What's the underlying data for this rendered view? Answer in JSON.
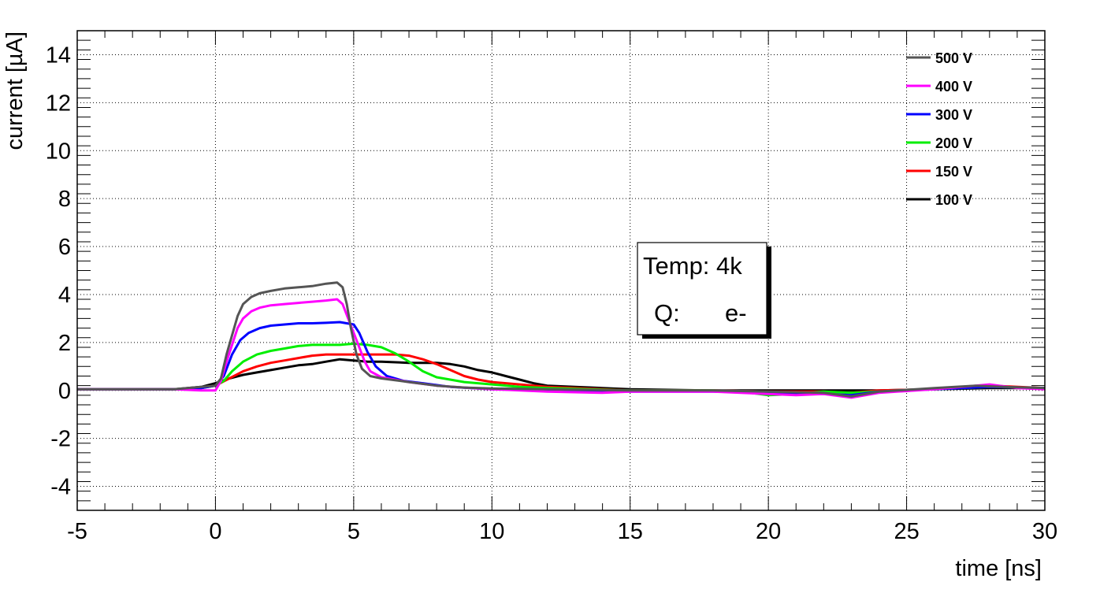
{
  "chart_data": {
    "type": "line",
    "title": "",
    "xlabel": "time [ns]",
    "ylabel": "current [µA]",
    "xlim": [
      -5,
      30
    ],
    "ylim": [
      -5,
      15
    ],
    "grid": true,
    "legend_position": "top-right",
    "x_ticks": [
      -5,
      0,
      5,
      10,
      15,
      20,
      25,
      30
    ],
    "x_tick_labels": [
      "-5",
      "0",
      "5",
      "10",
      "15",
      "20",
      "25",
      "30"
    ],
    "y_ticks": [
      -4,
      -2,
      0,
      2,
      4,
      6,
      8,
      10,
      12,
      14
    ],
    "y_tick_labels": [
      "-4",
      "-2",
      "0",
      "2",
      "4",
      "6",
      "8",
      "10",
      "12",
      "14"
    ],
    "annotation": {
      "line1": "Temp: 4k",
      "line2_label": "Q:",
      "line2_value": "e-"
    },
    "series": [
      {
        "name": "500 V",
        "color": "#555555",
        "points": [
          [
            -5,
            0.05
          ],
          [
            -3,
            0.05
          ],
          [
            -1.5,
            0.05
          ],
          [
            -0.5,
            0.15
          ],
          [
            0,
            0.2
          ],
          [
            0.2,
            0.5
          ],
          [
            0.4,
            1.5
          ],
          [
            0.6,
            2.3
          ],
          [
            0.8,
            3.1
          ],
          [
            1,
            3.6
          ],
          [
            1.3,
            3.9
          ],
          [
            1.6,
            4.05
          ],
          [
            2,
            4.15
          ],
          [
            2.5,
            4.25
          ],
          [
            3,
            4.3
          ],
          [
            3.5,
            4.35
          ],
          [
            4,
            4.45
          ],
          [
            4.4,
            4.5
          ],
          [
            4.6,
            4.3
          ],
          [
            4.75,
            3.6
          ],
          [
            4.9,
            2.6
          ],
          [
            5.1,
            1.5
          ],
          [
            5.3,
            0.9
          ],
          [
            5.6,
            0.6
          ],
          [
            6,
            0.5
          ],
          [
            7,
            0.35
          ],
          [
            8,
            0.2
          ],
          [
            9,
            0.12
          ],
          [
            10,
            0.08
          ],
          [
            12,
            0.05
          ],
          [
            15,
            0.0
          ],
          [
            18,
            0.0
          ],
          [
            20,
            -0.05
          ],
          [
            22,
            -0.1
          ],
          [
            23,
            -0.25
          ],
          [
            24,
            -0.05
          ],
          [
            26,
            0.1
          ],
          [
            27.5,
            0.2
          ],
          [
            28.5,
            0.15
          ],
          [
            30,
            0.1
          ]
        ]
      },
      {
        "name": "400 V",
        "color": "#ff00ff",
        "points": [
          [
            -5,
            0.05
          ],
          [
            -3,
            0.05
          ],
          [
            -1.5,
            0.05
          ],
          [
            -0.5,
            0.0
          ],
          [
            0,
            0.0
          ],
          [
            0.2,
            0.4
          ],
          [
            0.4,
            1.2
          ],
          [
            0.6,
            1.9
          ],
          [
            0.8,
            2.6
          ],
          [
            1,
            3.0
          ],
          [
            1.3,
            3.3
          ],
          [
            1.6,
            3.45
          ],
          [
            2,
            3.55
          ],
          [
            2.5,
            3.6
          ],
          [
            3,
            3.65
          ],
          [
            3.5,
            3.7
          ],
          [
            4,
            3.75
          ],
          [
            4.4,
            3.8
          ],
          [
            4.6,
            3.6
          ],
          [
            4.8,
            3.0
          ],
          [
            5,
            2.4
          ],
          [
            5.2,
            1.8
          ],
          [
            5.4,
            1.2
          ],
          [
            5.6,
            0.8
          ],
          [
            6,
            0.55
          ],
          [
            7,
            0.35
          ],
          [
            8,
            0.2
          ],
          [
            9,
            0.12
          ],
          [
            10,
            0.05
          ],
          [
            12,
            -0.05
          ],
          [
            14,
            -0.1
          ],
          [
            15,
            -0.05
          ],
          [
            18,
            -0.05
          ],
          [
            20,
            -0.15
          ],
          [
            21,
            -0.2
          ],
          [
            22,
            -0.15
          ],
          [
            23,
            -0.3
          ],
          [
            24,
            -0.1
          ],
          [
            26,
            0.05
          ],
          [
            27.5,
            0.2
          ],
          [
            28,
            0.25
          ],
          [
            29,
            0.1
          ],
          [
            30,
            0.05
          ]
        ]
      },
      {
        "name": "300 V",
        "color": "#0000ff",
        "points": [
          [
            -5,
            0.05
          ],
          [
            -3,
            0.05
          ],
          [
            -1.5,
            0.05
          ],
          [
            -0.5,
            0.1
          ],
          [
            0,
            0.2
          ],
          [
            0.3,
            0.6
          ],
          [
            0.6,
            1.5
          ],
          [
            0.9,
            2.1
          ],
          [
            1.2,
            2.4
          ],
          [
            1.6,
            2.6
          ],
          [
            2,
            2.7
          ],
          [
            2.5,
            2.75
          ],
          [
            3,
            2.8
          ],
          [
            3.5,
            2.8
          ],
          [
            4,
            2.82
          ],
          [
            4.5,
            2.85
          ],
          [
            5,
            2.75
          ],
          [
            5.2,
            2.4
          ],
          [
            5.5,
            1.6
          ],
          [
            5.8,
            1.0
          ],
          [
            6.2,
            0.6
          ],
          [
            6.8,
            0.4
          ],
          [
            7.5,
            0.3
          ],
          [
            8.5,
            0.15
          ],
          [
            10,
            0.05
          ],
          [
            12,
            0.0
          ],
          [
            15,
            -0.05
          ],
          [
            18,
            -0.05
          ],
          [
            20,
            -0.1
          ],
          [
            22,
            -0.15
          ],
          [
            23,
            -0.2
          ],
          [
            24,
            -0.05
          ],
          [
            26,
            0.05
          ],
          [
            28,
            0.15
          ],
          [
            30,
            0.1
          ]
        ]
      },
      {
        "name": "200 V",
        "color": "#00ee00",
        "points": [
          [
            -5,
            0.05
          ],
          [
            -3,
            0.05
          ],
          [
            -1.5,
            0.05
          ],
          [
            -0.5,
            0.1
          ],
          [
            0,
            0.2
          ],
          [
            0.3,
            0.4
          ],
          [
            0.6,
            0.8
          ],
          [
            1,
            1.2
          ],
          [
            1.5,
            1.5
          ],
          [
            2,
            1.65
          ],
          [
            2.5,
            1.75
          ],
          [
            3,
            1.85
          ],
          [
            3.5,
            1.9
          ],
          [
            4,
            1.9
          ],
          [
            4.5,
            1.9
          ],
          [
            5,
            1.95
          ],
          [
            5.5,
            1.9
          ],
          [
            6,
            1.8
          ],
          [
            6.5,
            1.55
          ],
          [
            7,
            1.2
          ],
          [
            7.5,
            0.8
          ],
          [
            8,
            0.55
          ],
          [
            9,
            0.35
          ],
          [
            10,
            0.25
          ],
          [
            11,
            0.15
          ],
          [
            12,
            0.1
          ],
          [
            15,
            0.0
          ],
          [
            18,
            0.0
          ],
          [
            19,
            -0.05
          ],
          [
            20,
            -0.2
          ],
          [
            21,
            -0.15
          ],
          [
            22,
            -0.05
          ],
          [
            23,
            -0.1
          ],
          [
            24,
            -0.05
          ],
          [
            26,
            0.05
          ],
          [
            28,
            0.15
          ],
          [
            30,
            0.1
          ]
        ]
      },
      {
        "name": "150 V",
        "color": "#ff0000",
        "points": [
          [
            -5,
            0.05
          ],
          [
            -3,
            0.05
          ],
          [
            -1.5,
            0.05
          ],
          [
            -0.5,
            0.1
          ],
          [
            0,
            0.2
          ],
          [
            0.5,
            0.5
          ],
          [
            1,
            0.8
          ],
          [
            1.5,
            1.0
          ],
          [
            2,
            1.15
          ],
          [
            2.5,
            1.25
          ],
          [
            3,
            1.35
          ],
          [
            3.5,
            1.45
          ],
          [
            4,
            1.5
          ],
          [
            4.5,
            1.5
          ],
          [
            5,
            1.5
          ],
          [
            5.5,
            1.5
          ],
          [
            6,
            1.5
          ],
          [
            6.5,
            1.5
          ],
          [
            7,
            1.45
          ],
          [
            7.5,
            1.3
          ],
          [
            8,
            1.1
          ],
          [
            8.5,
            0.85
          ],
          [
            9,
            0.6
          ],
          [
            9.5,
            0.45
          ],
          [
            10,
            0.35
          ],
          [
            11,
            0.25
          ],
          [
            12,
            0.15
          ],
          [
            13,
            0.1
          ],
          [
            15,
            0.0
          ],
          [
            18,
            0.0
          ],
          [
            20,
            -0.05
          ],
          [
            22,
            -0.05
          ],
          [
            23,
            -0.1
          ],
          [
            24,
            0.0
          ],
          [
            26,
            0.05
          ],
          [
            28,
            0.2
          ],
          [
            30,
            0.1
          ]
        ]
      },
      {
        "name": "100 V",
        "color": "#000000",
        "points": [
          [
            -5,
            0.05
          ],
          [
            -3,
            0.05
          ],
          [
            -1.5,
            0.05
          ],
          [
            -0.5,
            0.15
          ],
          [
            0,
            0.3
          ],
          [
            0.5,
            0.5
          ],
          [
            1,
            0.65
          ],
          [
            1.5,
            0.75
          ],
          [
            2,
            0.85
          ],
          [
            2.5,
            0.95
          ],
          [
            3,
            1.05
          ],
          [
            3.5,
            1.1
          ],
          [
            4,
            1.2
          ],
          [
            4.5,
            1.3
          ],
          [
            5,
            1.25
          ],
          [
            5.5,
            1.2
          ],
          [
            6,
            1.2
          ],
          [
            7,
            1.15
          ],
          [
            8,
            1.15
          ],
          [
            8.5,
            1.1
          ],
          [
            9,
            1.0
          ],
          [
            9.5,
            0.85
          ],
          [
            10,
            0.75
          ],
          [
            10.5,
            0.6
          ],
          [
            11,
            0.45
          ],
          [
            11.5,
            0.3
          ],
          [
            12,
            0.2
          ],
          [
            13,
            0.15
          ],
          [
            14,
            0.1
          ],
          [
            15,
            0.05
          ],
          [
            18,
            0.0
          ],
          [
            20,
            0.0
          ],
          [
            22,
            0.0
          ],
          [
            24,
            0.0
          ],
          [
            26,
            0.05
          ],
          [
            28,
            0.1
          ],
          [
            30,
            0.1
          ]
        ]
      }
    ]
  }
}
